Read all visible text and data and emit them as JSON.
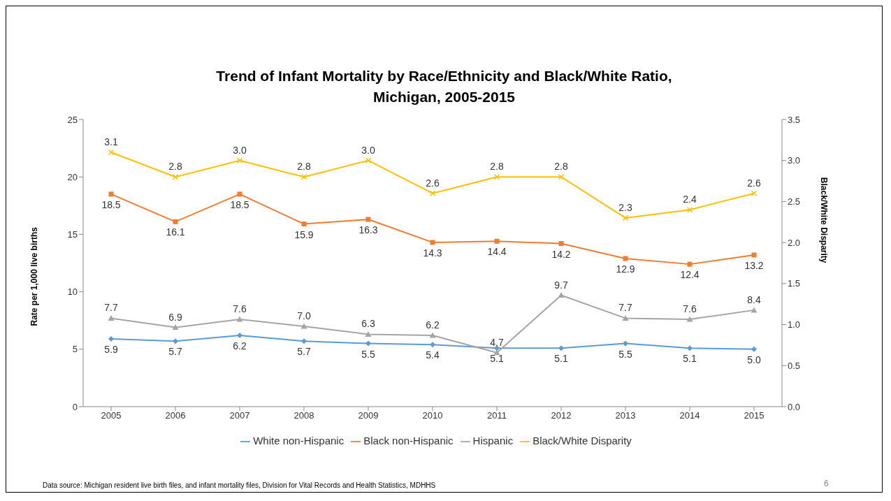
{
  "chart_data": {
    "type": "line",
    "title": "Trend of Infant Mortality by Race/Ethnicity and Black/White Ratio,\nMichigan, 2005-2015",
    "ylabel": "Rate per 1,000 live births",
    "y2label": "Black/White Disparity",
    "categories": [
      "2005",
      "2006",
      "2007",
      "2008",
      "2009",
      "2010",
      "2011",
      "2012",
      "2013",
      "2014",
      "2015"
    ],
    "series": [
      {
        "name": "White non-Hispanic",
        "color": "#5b9bd5",
        "marker": "diamond",
        "values": [
          5.9,
          5.7,
          6.2,
          5.7,
          5.5,
          5.4,
          5.1,
          5.1,
          5.5,
          5.1,
          5.0
        ],
        "value_labels": [
          "5.9",
          "5.7",
          "6.2",
          "5.7",
          "5.5",
          "5.4",
          "5.1",
          "5.1",
          "5.5",
          "5.1",
          "5.0"
        ]
      },
      {
        "name": "Black non-Hispanic",
        "color": "#ed7d31",
        "marker": "square",
        "values": [
          18.5,
          16.1,
          18.5,
          15.9,
          16.3,
          14.3,
          14.4,
          14.2,
          12.9,
          12.4,
          13.2
        ],
        "value_labels": [
          "18.5",
          "16.1",
          "18.5",
          "15.9",
          "16.3",
          "14.3",
          "14.4",
          "14.2",
          "12.9",
          "12.4",
          "13.2"
        ]
      },
      {
        "name": "Hispanic",
        "color": "#a5a5a5",
        "marker": "triangle",
        "values": [
          7.7,
          6.9,
          7.6,
          7.0,
          6.3,
          6.2,
          4.7,
          9.7,
          7.7,
          7.6,
          8.4
        ],
        "value_labels": [
          "7.7",
          "6.9",
          "7.6",
          "7.0",
          "6.3",
          "6.2",
          "4.7",
          "9.7",
          "7.7",
          "7.6",
          "8.4"
        ]
      },
      {
        "name": "Black/White Disparity",
        "color": "#ffc000",
        "marker": "cross",
        "axis": "y2",
        "values": [
          3.1,
          2.8,
          3.0,
          2.8,
          3.0,
          2.6,
          2.8,
          2.8,
          2.3,
          2.4,
          2.6
        ],
        "value_labels": [
          "3.1",
          "2.8",
          "3.0",
          "2.8",
          "3.0",
          "2.6",
          "2.8",
          "2.8",
          "2.3",
          "2.4",
          "2.6"
        ]
      }
    ],
    "ylim": [
      0,
      25
    ],
    "yticks": [
      0,
      5,
      10,
      15,
      20,
      25
    ],
    "y2lim": [
      0,
      3.5
    ],
    "y2ticks": [
      {
        "value": 0,
        "label": "0.0"
      },
      {
        "value": 0.5,
        "label": "0.5"
      },
      {
        "value": 1,
        "label": "1.0"
      },
      {
        "value": 1.5,
        "label": "1.5"
      },
      {
        "value": 2,
        "label": "2.0"
      },
      {
        "value": 2.5,
        "label": "2.5"
      },
      {
        "value": 3,
        "label": "3.0"
      },
      {
        "value": 3.5,
        "label": "3.5"
      }
    ],
    "grid": false,
    "legend": "bottom",
    "line_style": "solid",
    "annotations": [
      "Data source: Michigan resident live birth files, and infant mortality files, Division for Vital Records and Health Statistics, MDHHS",
      "6"
    ]
  }
}
